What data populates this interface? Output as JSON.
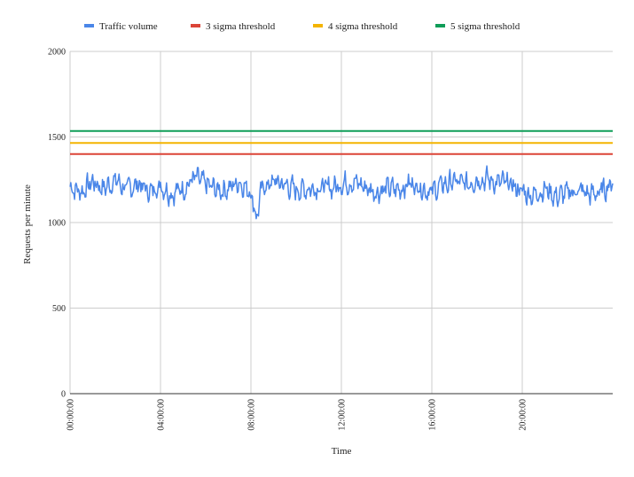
{
  "chart_data": {
    "type": "line",
    "title": "",
    "xlabel": "Time",
    "ylabel": "Requests per minute",
    "ylim": [
      0,
      2000
    ],
    "xlim_hours": [
      0,
      24
    ],
    "y_ticks": [
      0,
      500,
      1000,
      1500,
      2000
    ],
    "y_tick_labels": [
      "0",
      "500",
      "1000",
      "1500",
      "2000"
    ],
    "x_ticks_hours": [
      0,
      4,
      8,
      12,
      16,
      20
    ],
    "x_tick_labels": [
      "00:00:00",
      "04:00:00",
      "08:00:00",
      "12:00:00",
      "16:00:00",
      "20:00:00"
    ],
    "grid": true,
    "legend_position": "top",
    "series": [
      {
        "name": "Traffic volume",
        "color": "#4a86e8",
        "x_hours": [
          0,
          0.5,
          1,
          1.5,
          2,
          2.5,
          3,
          3.5,
          4,
          4.5,
          5,
          5.5,
          6,
          6.5,
          7,
          7.5,
          8,
          8.25,
          8.5,
          9,
          9.5,
          10,
          10.5,
          11,
          11.5,
          12,
          12.5,
          13,
          13.5,
          14,
          14.5,
          15,
          15.5,
          16,
          16.5,
          17,
          17.5,
          18,
          18.5,
          19,
          19.5,
          20,
          20.5,
          21,
          21.5,
          22,
          22.5,
          23,
          23.5,
          24
        ],
        "values": [
          1210,
          1180,
          1240,
          1200,
          1250,
          1190,
          1230,
          1180,
          1220,
          1170,
          1200,
          1260,
          1220,
          1190,
          1200,
          1240,
          1180,
          1030,
          1200,
          1240,
          1220,
          1190,
          1200,
          1210,
          1200,
          1230,
          1240,
          1210,
          1180,
          1200,
          1190,
          1230,
          1210,
          1180,
          1220,
          1240,
          1220,
          1260,
          1250,
          1230,
          1220,
          1180,
          1160,
          1200,
          1150,
          1170,
          1190,
          1160,
          1180,
          1240
        ]
      },
      {
        "name": "3 sigma threshold",
        "color": "#db4437",
        "constant": 1400
      },
      {
        "name": "4 sigma threshold",
        "color": "#f4b400",
        "constant": 1465
      },
      {
        "name": "5 sigma threshold",
        "color": "#0f9d58",
        "constant": 1535
      }
    ]
  }
}
